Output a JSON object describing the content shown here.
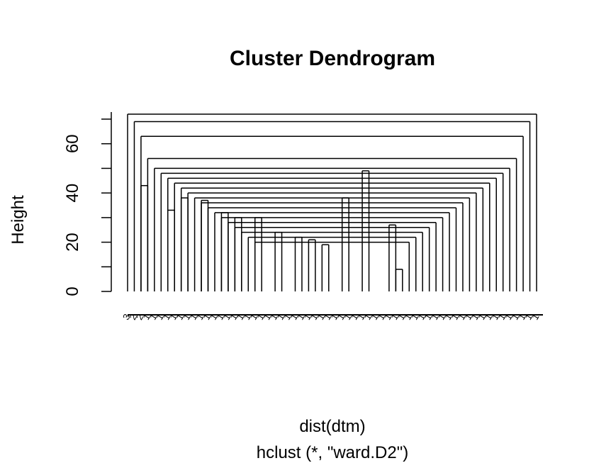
{
  "chart_data": {
    "type": "dendrogram",
    "title": "Cluster Dendrogram",
    "xlabel": "dist(dtm)",
    "sub": "hclust (*, \"ward.D2\")",
    "ylabel": "Height",
    "ylim": [
      0,
      70
    ],
    "yticks": [
      0,
      20,
      40,
      60
    ],
    "yminor": [
      10,
      30,
      50,
      70
    ],
    "leaf_labels": [
      "3",
      "2",
      "2",
      "1",
      "1",
      "1",
      "1",
      "1",
      "1",
      "1",
      "1",
      "1",
      "1",
      "1",
      "1",
      "1",
      "1",
      "1",
      "1",
      "1",
      "1",
      "1",
      "1",
      "1",
      "1",
      "1",
      "1",
      "1",
      "1",
      "1",
      "1",
      "1",
      "1",
      "1",
      "1",
      "1",
      "1",
      "1",
      "1",
      "1",
      "1",
      "1",
      "1",
      "1",
      "1",
      "1",
      "1",
      "1",
      "1",
      "1",
      "1",
      "1",
      "1",
      "1",
      "1",
      "1",
      "1",
      "1",
      "1",
      "1",
      "1",
      "1"
    ],
    "merges": [
      {
        "left": 2,
        "right": 3,
        "height": 43
      },
      {
        "left": 6,
        "right": 7,
        "height": 33
      },
      {
        "left": 8,
        "right": 9,
        "height": 38
      },
      {
        "left": 11,
        "right": 12,
        "height": 37
      },
      {
        "left": 14,
        "right": 15,
        "height": 32
      },
      {
        "left": 16,
        "right": 17,
        "height": 30
      },
      {
        "left": 19,
        "right": 20,
        "height": 30
      },
      {
        "left": 22,
        "right": 23,
        "height": 24
      },
      {
        "left": 25,
        "right": 26,
        "height": 22
      },
      {
        "left": 27,
        "right": 28,
        "height": 21
      },
      {
        "left": 29,
        "right": 30,
        "height": 19
      },
      {
        "left": 32,
        "right": 33,
        "height": 38
      },
      {
        "left": 35,
        "right": 36,
        "height": 49
      },
      {
        "left": 39,
        "right": 40,
        "height": 27
      },
      {
        "left": 40,
        "right": 41,
        "height": 9
      }
    ]
  }
}
